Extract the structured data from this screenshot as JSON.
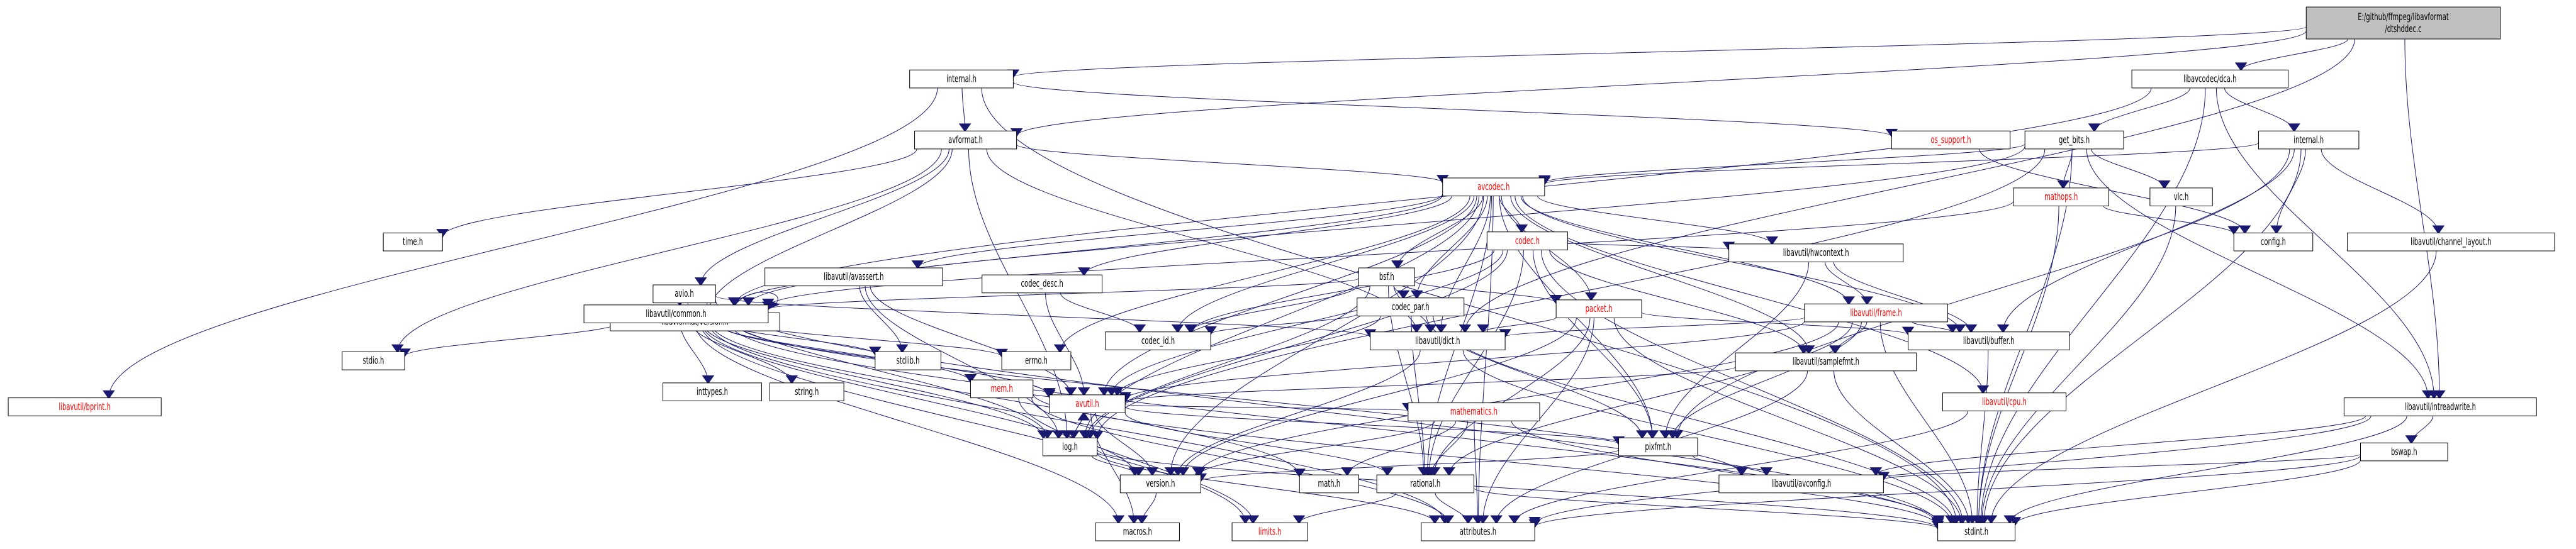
{
  "colors": {
    "edge": "#191970",
    "root_fill": "#bfbfbf",
    "node_fill": "#ffffff",
    "missing_text": "#ff0000",
    "grey_border": "#bfbfbf",
    "normal_text": "#000000"
  },
  "nodes": [
    {
      "id": "root",
      "label": "E:/github/ffmpeg/libavformat\n/dtshddec.c",
      "kind": "root"
    },
    {
      "id": "internal_h",
      "label": "internal.h",
      "kind": "normal"
    },
    {
      "id": "avformat_h",
      "label": "avformat.h",
      "kind": "normal"
    },
    {
      "id": "os_support_h",
      "label": "os_support.h",
      "kind": "missing"
    },
    {
      "id": "libavcodec_dca_h",
      "label": "libavcodec/dca.h",
      "kind": "normal"
    },
    {
      "id": "get_bits_h",
      "label": "get_bits.h",
      "kind": "normal"
    },
    {
      "id": "internal_h2",
      "label": "internal.h",
      "kind": "normal"
    },
    {
      "id": "avcodec_h",
      "label": "avcodec.h",
      "kind": "missing"
    },
    {
      "id": "mathops_h",
      "label": "mathops.h",
      "kind": "missing"
    },
    {
      "id": "vlc_h",
      "label": "vlc.h",
      "kind": "normal"
    },
    {
      "id": "config_h",
      "label": "config.h",
      "kind": "grey"
    },
    {
      "id": "channel_layout_h",
      "label": "libavutil/channel_layout.h",
      "kind": "normal"
    },
    {
      "id": "time_h",
      "label": "time.h",
      "kind": "grey"
    },
    {
      "id": "avio_h",
      "label": "avio.h",
      "kind": "normal"
    },
    {
      "id": "libavformat_version_h",
      "label": "libavformat/version.h",
      "kind": "normal"
    },
    {
      "id": "common_h",
      "label": "libavutil/common.h",
      "kind": "normal"
    },
    {
      "id": "avassert_h",
      "label": "libavutil/avassert.h",
      "kind": "normal"
    },
    {
      "id": "codec_desc_h",
      "label": "codec_desc.h",
      "kind": "normal"
    },
    {
      "id": "codec_h",
      "label": "codec.h",
      "kind": "missing"
    },
    {
      "id": "bsf_h",
      "label": "bsf.h",
      "kind": "normal"
    },
    {
      "id": "codec_par_h",
      "label": "codec_par.h",
      "kind": "normal"
    },
    {
      "id": "packet_h",
      "label": "packet.h",
      "kind": "missing"
    },
    {
      "id": "hwcontext_h",
      "label": "libavutil/hwcontext.h",
      "kind": "normal"
    },
    {
      "id": "frame_h",
      "label": "libavutil/frame.h",
      "kind": "missing"
    },
    {
      "id": "buffer_h",
      "label": "libavutil/buffer.h",
      "kind": "normal"
    },
    {
      "id": "samplefmt_h",
      "label": "libavutil/samplefmt.h",
      "kind": "normal"
    },
    {
      "id": "cpu_h",
      "label": "libavutil/cpu.h",
      "kind": "missing"
    },
    {
      "id": "intreadwrite_h",
      "label": "libavutil/intreadwrite.h",
      "kind": "normal"
    },
    {
      "id": "bswap_h",
      "label": "bswap.h",
      "kind": "normal"
    },
    {
      "id": "codec_id_h",
      "label": "codec_id.h",
      "kind": "normal"
    },
    {
      "id": "dict_h",
      "label": "libavutil/dict.h",
      "kind": "normal"
    },
    {
      "id": "avutil_h",
      "label": "avutil.h",
      "kind": "missing"
    },
    {
      "id": "log_h",
      "label": "log.h",
      "kind": "normal"
    },
    {
      "id": "version_h",
      "label": "version.h",
      "kind": "normal"
    },
    {
      "id": "mathematics_h",
      "label": "mathematics.h",
      "kind": "missing"
    },
    {
      "id": "pixfmt_h",
      "label": "pixfmt.h",
      "kind": "normal"
    },
    {
      "id": "rational_h",
      "label": "rational.h",
      "kind": "normal"
    },
    {
      "id": "math_h",
      "label": "math.h",
      "kind": "grey"
    },
    {
      "id": "avconfig_h",
      "label": "libavutil/avconfig.h",
      "kind": "normal"
    },
    {
      "id": "attributes_h",
      "label": "attributes.h",
      "kind": "normal"
    },
    {
      "id": "stdint_h",
      "label": "stdint.h",
      "kind": "grey"
    },
    {
      "id": "macros_h",
      "label": "macros.h",
      "kind": "normal"
    },
    {
      "id": "limits_h",
      "label": "limits.h",
      "kind": "missing"
    },
    {
      "id": "bprint_h",
      "label": "libavutil/bprint.h",
      "kind": "missing"
    },
    {
      "id": "stdio_h",
      "label": "stdio.h",
      "kind": "grey"
    },
    {
      "id": "inttypes_h",
      "label": "inttypes.h",
      "kind": "grey"
    },
    {
      "id": "string_h",
      "label": "string.h",
      "kind": "grey"
    },
    {
      "id": "mem_h",
      "label": "mem.h",
      "kind": "missing"
    },
    {
      "id": "stdlib_h",
      "label": "stdlib.h",
      "kind": "grey"
    },
    {
      "id": "errno_h",
      "label": "errno.h",
      "kind": "grey"
    }
  ],
  "edges": [
    [
      "root",
      "internal_h"
    ],
    [
      "root",
      "avformat_h"
    ],
    [
      "root",
      "libavcodec_dca_h"
    ],
    [
      "root",
      "intreadwrite_h"
    ],
    [
      "root",
      "dict_h"
    ],
    [
      "internal_h",
      "avformat_h"
    ],
    [
      "internal_h",
      "os_support_h"
    ],
    [
      "internal_h",
      "bprint_h"
    ],
    [
      "internal_h",
      "stdint_h"
    ],
    [
      "avformat_h",
      "time_h"
    ],
    [
      "avformat_h",
      "stdio_h"
    ],
    [
      "avformat_h",
      "avio_h"
    ],
    [
      "avformat_h",
      "libavformat_version_h"
    ],
    [
      "avformat_h",
      "avcodec_h"
    ],
    [
      "avformat_h",
      "dict_h"
    ],
    [
      "avformat_h",
      "log_h"
    ],
    [
      "libavcodec_dca_h",
      "get_bits_h"
    ],
    [
      "libavcodec_dca_h",
      "internal_h2"
    ],
    [
      "libavcodec_dca_h",
      "common_h"
    ],
    [
      "libavcodec_dca_h",
      "intreadwrite_h"
    ],
    [
      "libavcodec_dca_h",
      "stdint_h"
    ],
    [
      "get_bits_h",
      "mathops_h"
    ],
    [
      "get_bits_h",
      "vlc_h"
    ],
    [
      "get_bits_h",
      "avcodec_h"
    ],
    [
      "get_bits_h",
      "common_h"
    ],
    [
      "get_bits_h",
      "log_h"
    ],
    [
      "get_bits_h",
      "stdint_h"
    ],
    [
      "get_bits_h",
      "intreadwrite_h"
    ],
    [
      "internal_h2",
      "config_h"
    ],
    [
      "internal_h2",
      "channel_layout_h"
    ],
    [
      "internal_h2",
      "avcodec_h"
    ],
    [
      "internal_h2",
      "buffer_h"
    ],
    [
      "internal_h2",
      "pixfmt_h"
    ],
    [
      "internal_h2",
      "stdint_h"
    ],
    [
      "os_support_h",
      "config_h"
    ],
    [
      "mathops_h",
      "config_h"
    ],
    [
      "mathops_h",
      "common_h"
    ],
    [
      "mathops_h",
      "stdint_h"
    ],
    [
      "vlc_h",
      "stdint_h"
    ],
    [
      "channel_layout_h",
      "stdint_h"
    ],
    [
      "avio_h",
      "common_h"
    ],
    [
      "avio_h",
      "dict_h"
    ],
    [
      "avio_h",
      "log_h"
    ],
    [
      "avio_h",
      "libavformat_version_h"
    ],
    [
      "avio_h",
      "stdint_h"
    ],
    [
      "avcodec_h",
      "errno_h"
    ],
    [
      "avcodec_h",
      "common_h"
    ],
    [
      "avcodec_h",
      "avassert_h"
    ],
    [
      "avcodec_h",
      "codec_desc_h"
    ],
    [
      "avcodec_h",
      "codec_h"
    ],
    [
      "avcodec_h",
      "bsf_h"
    ],
    [
      "avcodec_h",
      "codec_par_h"
    ],
    [
      "avcodec_h",
      "packet_h"
    ],
    [
      "avcodec_h",
      "hwcontext_h"
    ],
    [
      "avcodec_h",
      "frame_h"
    ],
    [
      "avcodec_h",
      "buffer_h"
    ],
    [
      "avcodec_h",
      "samplefmt_h"
    ],
    [
      "avcodec_h",
      "cpu_h"
    ],
    [
      "avcodec_h",
      "codec_id_h"
    ],
    [
      "avcodec_h",
      "dict_h"
    ],
    [
      "avcodec_h",
      "avutil_h"
    ],
    [
      "avcodec_h",
      "log_h"
    ],
    [
      "avcodec_h",
      "pixfmt_h"
    ],
    [
      "avcodec_h",
      "rational_h"
    ],
    [
      "avcodec_h",
      "attributes_h"
    ],
    [
      "avcodec_h",
      "version_h"
    ],
    [
      "common_h",
      "stdio_h"
    ],
    [
      "common_h",
      "inttypes_h"
    ],
    [
      "common_h",
      "string_h"
    ],
    [
      "common_h",
      "mem_h"
    ],
    [
      "common_h",
      "stdlib_h"
    ],
    [
      "common_h",
      "errno_h"
    ],
    [
      "common_h",
      "common_h"
    ],
    [
      "common_h",
      "avutil_h"
    ],
    [
      "common_h",
      "log_h"
    ],
    [
      "common_h",
      "math_h"
    ],
    [
      "common_h",
      "version_h"
    ],
    [
      "common_h",
      "stdint_h"
    ],
    [
      "common_h",
      "limits_h"
    ],
    [
      "common_h",
      "macros_h"
    ],
    [
      "common_h",
      "attributes_h"
    ],
    [
      "common_h",
      "avconfig_h"
    ],
    [
      "avassert_h",
      "stdlib_h"
    ],
    [
      "avassert_h",
      "avutil_h"
    ],
    [
      "avassert_h",
      "log_h"
    ],
    [
      "codec_desc_h",
      "avutil_h"
    ],
    [
      "codec_desc_h",
      "codec_id_h"
    ],
    [
      "codec_h",
      "codec_id_h"
    ],
    [
      "codec_h",
      "hwcontext_h"
    ],
    [
      "codec_h",
      "samplefmt_h"
    ],
    [
      "codec_h",
      "avutil_h"
    ],
    [
      "codec_h",
      "log_h"
    ],
    [
      "codec_h",
      "pixfmt_h"
    ],
    [
      "codec_h",
      "rational_h"
    ],
    [
      "codec_h",
      "stdint_h"
    ],
    [
      "bsf_h",
      "common_h"
    ],
    [
      "bsf_h",
      "codec_id_h"
    ],
    [
      "bsf_h",
      "dict_h"
    ],
    [
      "bsf_h",
      "log_h"
    ],
    [
      "bsf_h",
      "packet_h"
    ],
    [
      "bsf_h",
      "rational_h"
    ],
    [
      "bsf_h",
      "codec_par_h"
    ],
    [
      "codec_par_h",
      "codec_id_h"
    ],
    [
      "codec_par_h",
      "avutil_h"
    ],
    [
      "codec_par_h",
      "rational_h"
    ],
    [
      "codec_par_h",
      "pixfmt_h"
    ],
    [
      "codec_par_h",
      "stdint_h"
    ],
    [
      "packet_h",
      "dict_h"
    ],
    [
      "packet_h",
      "buffer_h"
    ],
    [
      "packet_h",
      "attributes_h"
    ],
    [
      "packet_h",
      "rational_h"
    ],
    [
      "packet_h",
      "version_h"
    ],
    [
      "packet_h",
      "stdint_h"
    ],
    [
      "hwcontext_h",
      "frame_h"
    ],
    [
      "hwcontext_h",
      "buffer_h"
    ],
    [
      "hwcontext_h",
      "pixfmt_h"
    ],
    [
      "frame_h",
      "buffer_h"
    ],
    [
      "frame_h",
      "samplefmt_h"
    ],
    [
      "frame_h",
      "dict_h"
    ],
    [
      "frame_h",
      "avutil_h"
    ],
    [
      "frame_h",
      "pixfmt_h"
    ],
    [
      "frame_h",
      "rational_h"
    ],
    [
      "frame_h",
      "stdint_h"
    ],
    [
      "frame_h",
      "version_h"
    ],
    [
      "buffer_h",
      "stdint_h"
    ],
    [
      "samplefmt_h",
      "avutil_h"
    ],
    [
      "samplefmt_h",
      "attributes_h"
    ],
    [
      "samplefmt_h",
      "stdint_h"
    ],
    [
      "cpu_h",
      "attributes_h"
    ],
    [
      "intreadwrite_h",
      "avconfig_h"
    ],
    [
      "intreadwrite_h",
      "attributes_h"
    ],
    [
      "intreadwrite_h",
      "bswap_h"
    ],
    [
      "intreadwrite_h",
      "stdint_h"
    ],
    [
      "bswap_h",
      "avconfig_h"
    ],
    [
      "bswap_h",
      "attributes_h"
    ],
    [
      "bswap_h",
      "stdint_h"
    ],
    [
      "dict_h",
      "stdint_h"
    ],
    [
      "dict_h",
      "version_h"
    ],
    [
      "avutil_h",
      "common_h"
    ],
    [
      "avutil_h",
      "log_h"
    ],
    [
      "avutil_h",
      "mathematics_h"
    ],
    [
      "avutil_h",
      "rational_h"
    ],
    [
      "avutil_h",
      "pixfmt_h"
    ],
    [
      "avutil_h",
      "version_h"
    ],
    [
      "avutil_h",
      "macros_h"
    ],
    [
      "log_h",
      "avutil_h"
    ],
    [
      "log_h",
      "attributes_h"
    ],
    [
      "log_h",
      "version_h"
    ],
    [
      "log_h",
      "stdint_h"
    ],
    [
      "version_h",
      "macros_h"
    ],
    [
      "mathematics_h",
      "math_h"
    ],
    [
      "mathematics_h",
      "attributes_h"
    ],
    [
      "mathematics_h",
      "rational_h"
    ],
    [
      "mathematics_h",
      "stdint_h"
    ],
    [
      "mathematics_h",
      "version_h"
    ],
    [
      "pixfmt_h",
      "avconfig_h"
    ],
    [
      "pixfmt_h",
      "version_h"
    ],
    [
      "rational_h",
      "attributes_h"
    ],
    [
      "rational_h",
      "stdint_h"
    ],
    [
      "rational_h",
      "limits_h"
    ],
    [
      "mem_h",
      "attributes_h"
    ],
    [
      "mem_h",
      "avutil_h"
    ],
    [
      "mem_h",
      "limits_h"
    ],
    [
      "mem_h",
      "stdint_h"
    ]
  ]
}
